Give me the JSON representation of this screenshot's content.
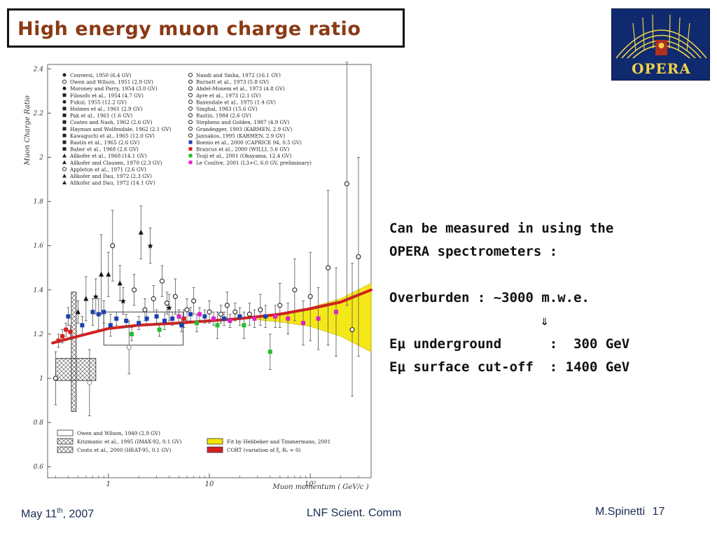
{
  "slide": {
    "title": "High energy muon charge ratio",
    "logo_text": "OPERA",
    "notes": [
      "Can be measured in using the",
      "OPERA spectrometers :",
      "",
      "Overburden : ~3000 m.w.e.",
      "⇓",
      "Eμ underground      :  300 GeV",
      "Eμ surface cut-off  : 1400 GeV"
    ],
    "footer": {
      "date_prefix": "May 11",
      "date_sup": "th",
      "date_suffix": ", 2007",
      "event": "LNF Scient. Comm",
      "author": "M.Spinetti",
      "page": "17"
    }
  },
  "colors": {
    "title": "#8a3a14",
    "logo_bg": "#0f2a6e",
    "logo_gold": "#f2d34a",
    "cort_band": "#d42020",
    "fit_band": "#f5e600",
    "footer": "#1a2a55"
  },
  "chart_data": {
    "type": "scatter",
    "title": "",
    "xlabel": "Muon momentum  ( GeV/c )",
    "ylabel": "Muon Charge Ratio",
    "x_scale": "log",
    "xlim": [
      0.25,
      400
    ],
    "ylim": [
      0.55,
      2.42
    ],
    "x_ticks": [
      {
        "value": 1,
        "label": "1"
      },
      {
        "value": 10,
        "label": "10"
      },
      {
        "value": 100,
        "label": "10²"
      }
    ],
    "y_ticks": [
      0.6,
      0.8,
      1,
      1.2,
      1.4,
      1.6,
      1.8,
      2,
      2.2,
      2.4
    ],
    "y_tick_labels": [
      "0.6",
      "0.8",
      "1",
      "1.2",
      "1.4",
      "1.6",
      "1.8",
      "2",
      "2.2",
      "2.4"
    ],
    "legend_left": [
      "Conversi, 1950 (6.4 GV)",
      "Owen and Wilson, 1951 (2.9 GV)",
      "Moroney and Parry, 1954 (3.0 GV)",
      "Filosofo et al., 1954 (4.7 GV)",
      "Fukui, 1955 (12.2 GV)",
      "Holmes et al., 1961 (2.9 GV)",
      "Pak et al., 1961 (1.6 GV)",
      "Coates and Nash, 1962 (2.6 GV)",
      "Hayman and Wolfendale, 1962 (2.1 GV)",
      "Kawaguchi et al., 1965 (12.0 GV)",
      "Rastin et al., 1965 (2.6 GV)",
      "Baber et al., 1968 (2.6 GV)",
      "Allkofer et al., 1968 (14.1 GV)",
      "Allkofer and Clausen, 1970 (2.3 GV)",
      "Appleton et al., 1971 (2.6 GV)",
      "Allkofer and Dau, 1972 (2.3 GV)",
      "Allkofer and Dau, 1972 (14.1 GV)"
    ],
    "legend_right": [
      "Nandi and Sinha, 1972 (16.1 GV)",
      "Burnett et al., 1973 (5.8 GV)",
      "Abdel-Monem et al., 1973 (4.8 GV)",
      "Ayre et al., 1973 (2.1 GV)",
      "Baxendale et al., 1975 (1.4 GV)",
      "Singhal, 1983 (15.6 GV)",
      "Rastin, 1984 (2.6 GV)",
      "Stephens and Golden, 1987 (4.9 GV)",
      "Grandegger, 1993 (KARMEN, 2.9 GV)",
      "Jannakos, 1995 (KARMEN, 2.9 GV)",
      "Boezio et al., 2000 (CAPRICE 94, 0.5 GV)",
      "Brancus et al., 2000 (WILLI, 5.6 GV)",
      "Tsuji et al., 2001 (Okayama, 12.4 GV)",
      "Le Coultre, 2001 (L3+C, 6.0 GV, preliminary)"
    ],
    "legend_right_colors": [
      null,
      null,
      null,
      null,
      null,
      null,
      null,
      null,
      null,
      null,
      "#1a3fb0",
      "#d42020",
      "#22c02a",
      "#e020c8"
    ],
    "legend_bottom_left": [
      "Owen and Wilson, 1949 (2.9 GV)",
      "Krizmanic et al., 1995 (IMAX-92, 0.1 GV)",
      "Coutu et al., 2000 (HEAT-95, 0.1 GV)"
    ],
    "legend_bottom_right": [
      "Fit by Hebbeker and Timmermans, 2001",
      "CORT (variation of ξ, Rₑ = 0)"
    ],
    "cort_curve": {
      "x": [
        0.28,
        0.5,
        1,
        2,
        5,
        10,
        20,
        50,
        100,
        200,
        400
      ],
      "y": [
        1.16,
        1.19,
        1.225,
        1.24,
        1.25,
        1.26,
        1.27,
        1.29,
        1.315,
        1.345,
        1.4
      ]
    },
    "fit_band": {
      "x": [
        30,
        50,
        100,
        200,
        400
      ],
      "upper": [
        1.275,
        1.29,
        1.32,
        1.36,
        1.43
      ],
      "lower": [
        1.265,
        1.255,
        1.235,
        1.19,
        1.12
      ]
    },
    "reference_boxes": [
      {
        "name": "Owen and Wilson 1949",
        "x": [
          0.9,
          5.5
        ],
        "y": [
          1.15,
          1.3
        ]
      },
      {
        "name": "Krizmanic 1995",
        "x": [
          0.3,
          0.75
        ],
        "y": [
          0.99,
          1.09
        ]
      },
      {
        "name": "Coutu 2000",
        "x": [
          0.43,
          0.48
        ],
        "y": [
          0.85,
          1.39
        ]
      }
    ],
    "points": [
      {
        "x": 0.3,
        "y": 1.0,
        "err": 0.12,
        "m": "circle",
        "c": "#111"
      },
      {
        "x": 0.32,
        "y": 1.17,
        "err": 0.03,
        "m": "square",
        "c": "#d42020"
      },
      {
        "x": 0.35,
        "y": 1.19,
        "err": 0.03,
        "m": "square",
        "c": "#d42020"
      },
      {
        "x": 0.38,
        "y": 1.22,
        "err": 0.03,
        "m": "square",
        "c": "#d42020"
      },
      {
        "x": 0.4,
        "y": 1.28,
        "err": 0.04,
        "m": "square",
        "c": "#1a3fb0"
      },
      {
        "x": 0.42,
        "y": 1.21,
        "err": 0.03,
        "m": "square",
        "c": "#d42020"
      },
      {
        "x": 0.5,
        "y": 1.3,
        "err": 0.05,
        "m": "triangle",
        "c": "#111"
      },
      {
        "x": 0.55,
        "y": 1.24,
        "err": 0.04,
        "m": "square",
        "c": "#1a3fb0"
      },
      {
        "x": 0.6,
        "y": 1.36,
        "err": 0.1,
        "m": "triangle",
        "c": "#111"
      },
      {
        "x": 0.65,
        "y": 0.98,
        "err": 0.15,
        "m": "circle",
        "c": "#888"
      },
      {
        "x": 0.7,
        "y": 1.3,
        "err": 0.06,
        "m": "square",
        "c": "#1a3fb0"
      },
      {
        "x": 0.75,
        "y": 1.37,
        "err": 0.08,
        "m": "star",
        "c": "#111"
      },
      {
        "x": 0.8,
        "y": 1.29,
        "err": 0.07,
        "m": "square",
        "c": "#1a3fb0"
      },
      {
        "x": 0.85,
        "y": 1.47,
        "err": 0.18,
        "m": "triangle",
        "c": "#111"
      },
      {
        "x": 0.9,
        "y": 1.3,
        "err": 0.05,
        "m": "square",
        "c": "#1a3fb0"
      },
      {
        "x": 1.0,
        "y": 1.47,
        "err": 0.1,
        "m": "triangle",
        "c": "#111"
      },
      {
        "x": 1.05,
        "y": 1.24,
        "err": 0.05,
        "m": "square",
        "c": "#1a3fb0"
      },
      {
        "x": 1.1,
        "y": 1.6,
        "err": 0.16,
        "m": "circle",
        "c": "#111"
      },
      {
        "x": 1.2,
        "y": 1.27,
        "err": 0.03,
        "m": "square",
        "c": "#1a3fb0"
      },
      {
        "x": 1.3,
        "y": 1.43,
        "err": 0.08,
        "m": "triangle",
        "c": "#111"
      },
      {
        "x": 1.4,
        "y": 1.35,
        "err": 0.06,
        "m": "star",
        "c": "#111"
      },
      {
        "x": 1.5,
        "y": 1.26,
        "err": 0.03,
        "m": "square",
        "c": "#1a3fb0"
      },
      {
        "x": 1.6,
        "y": 1.14,
        "err": 0.12,
        "m": "circle",
        "c": "#888"
      },
      {
        "x": 1.7,
        "y": 1.2,
        "err": 0.03,
        "m": "square",
        "c": "#22c02a"
      },
      {
        "x": 1.8,
        "y": 1.4,
        "err": 0.07,
        "m": "circle",
        "c": "#111"
      },
      {
        "x": 2.0,
        "y": 1.25,
        "err": 0.03,
        "m": "square",
        "c": "#1a3fb0"
      },
      {
        "x": 2.1,
        "y": 1.66,
        "err": 0.12,
        "m": "triangle",
        "c": "#111"
      },
      {
        "x": 2.3,
        "y": 1.31,
        "err": 0.05,
        "m": "circle",
        "c": "#111"
      },
      {
        "x": 2.4,
        "y": 1.27,
        "err": 0.03,
        "m": "square",
        "c": "#1a3fb0"
      },
      {
        "x": 2.6,
        "y": 1.6,
        "err": 0.08,
        "m": "star",
        "c": "#111"
      },
      {
        "x": 2.8,
        "y": 1.36,
        "err": 0.06,
        "m": "circle",
        "c": "#111"
      },
      {
        "x": 3.0,
        "y": 1.28,
        "err": 0.03,
        "m": "square",
        "c": "#1a3fb0"
      },
      {
        "x": 3.2,
        "y": 1.22,
        "err": 0.03,
        "m": "square",
        "c": "#22c02a"
      },
      {
        "x": 3.4,
        "y": 1.44,
        "err": 0.07,
        "m": "circle",
        "c": "#111"
      },
      {
        "x": 3.6,
        "y": 1.26,
        "err": 0.04,
        "m": "square",
        "c": "#1a3fb0"
      },
      {
        "x": 3.8,
        "y": 1.34,
        "err": 0.05,
        "m": "circle",
        "c": "#111"
      },
      {
        "x": 4.0,
        "y": 1.32,
        "err": 0.06,
        "m": "star",
        "c": "#111"
      },
      {
        "x": 4.3,
        "y": 1.27,
        "err": 0.03,
        "m": "square",
        "c": "#1a3fb0"
      },
      {
        "x": 4.6,
        "y": 1.37,
        "err": 0.08,
        "m": "circle",
        "c": "#111"
      },
      {
        "x": 5.0,
        "y": 1.28,
        "err": 0.03,
        "m": "square",
        "c": "#e020c8"
      },
      {
        "x": 5.3,
        "y": 1.24,
        "err": 0.03,
        "m": "square",
        "c": "#1a3fb0"
      },
      {
        "x": 5.6,
        "y": 1.27,
        "err": 0.04,
        "m": "square",
        "c": "#d42020"
      },
      {
        "x": 6.0,
        "y": 1.31,
        "err": 0.05,
        "m": "circle",
        "c": "#111"
      },
      {
        "x": 6.5,
        "y": 1.29,
        "err": 0.03,
        "m": "square",
        "c": "#1a3fb0"
      },
      {
        "x": 7.0,
        "y": 1.35,
        "err": 0.06,
        "m": "circle",
        "c": "#111"
      },
      {
        "x": 7.5,
        "y": 1.25,
        "err": 0.04,
        "m": "square",
        "c": "#22c02a"
      },
      {
        "x": 8.0,
        "y": 1.29,
        "err": 0.03,
        "m": "square",
        "c": "#e020c8"
      },
      {
        "x": 9.0,
        "y": 1.28,
        "err": 0.03,
        "m": "square",
        "c": "#1a3fb0"
      },
      {
        "x": 10.0,
        "y": 1.3,
        "err": 0.05,
        "m": "circle",
        "c": "#111"
      },
      {
        "x": 11.0,
        "y": 1.27,
        "err": 0.03,
        "m": "square",
        "c": "#e020c8"
      },
      {
        "x": 12.0,
        "y": 1.24,
        "err": 0.06,
        "m": "square",
        "c": "#22c02a"
      },
      {
        "x": 13.0,
        "y": 1.29,
        "err": 0.04,
        "m": "circle",
        "c": "#111"
      },
      {
        "x": 14.0,
        "y": 1.27,
        "err": 0.03,
        "m": "square",
        "c": "#1a3fb0"
      },
      {
        "x": 15.0,
        "y": 1.33,
        "err": 0.06,
        "m": "circle",
        "c": "#111"
      },
      {
        "x": 16.0,
        "y": 1.26,
        "err": 0.03,
        "m": "square",
        "c": "#e020c8"
      },
      {
        "x": 18.0,
        "y": 1.3,
        "err": 0.04,
        "m": "circle",
        "c": "#111"
      },
      {
        "x": 20.0,
        "y": 1.28,
        "err": 0.04,
        "m": "square",
        "c": "#1a3fb0"
      },
      {
        "x": 22.0,
        "y": 1.24,
        "err": 0.06,
        "m": "square",
        "c": "#22c02a"
      },
      {
        "x": 25.0,
        "y": 1.29,
        "err": 0.05,
        "m": "circle",
        "c": "#111"
      },
      {
        "x": 28.0,
        "y": 1.27,
        "err": 0.04,
        "m": "square",
        "c": "#e020c8"
      },
      {
        "x": 32.0,
        "y": 1.31,
        "err": 0.07,
        "m": "circle",
        "c": "#111"
      },
      {
        "x": 36.0,
        "y": 1.28,
        "err": 0.05,
        "m": "square",
        "c": "#1a3fb0"
      },
      {
        "x": 40.0,
        "y": 1.12,
        "err": 0.08,
        "m": "square",
        "c": "#22c02a"
      },
      {
        "x": 45.0,
        "y": 1.28,
        "err": 0.05,
        "m": "square",
        "c": "#e020c8"
      },
      {
        "x": 50.0,
        "y": 1.33,
        "err": 0.1,
        "m": "circle",
        "c": "#111"
      },
      {
        "x": 60.0,
        "y": 1.27,
        "err": 0.07,
        "m": "square",
        "c": "#e020c8"
      },
      {
        "x": 70.0,
        "y": 1.4,
        "err": 0.14,
        "m": "circle",
        "c": "#111"
      },
      {
        "x": 85.0,
        "y": 1.25,
        "err": 0.1,
        "m": "square",
        "c": "#e020c8"
      },
      {
        "x": 100.0,
        "y": 1.37,
        "err": 0.2,
        "m": "circle",
        "c": "#111"
      },
      {
        "x": 120.0,
        "y": 1.27,
        "err": 0.14,
        "m": "square",
        "c": "#e020c8"
      },
      {
        "x": 150.0,
        "y": 1.5,
        "err": 0.35,
        "m": "circle",
        "c": "#111"
      },
      {
        "x": 180.0,
        "y": 1.3,
        "err": 0.2,
        "m": "square",
        "c": "#e020c8"
      },
      {
        "x": 230.0,
        "y": 1.88,
        "err": 0.55,
        "m": "circle",
        "c": "#111"
      },
      {
        "x": 260.0,
        "y": 1.22,
        "err": 0.3,
        "m": "circle",
        "c": "#111"
      },
      {
        "x": 300.0,
        "y": 1.55,
        "err": 0.45,
        "m": "circle",
        "c": "#111"
      }
    ]
  }
}
